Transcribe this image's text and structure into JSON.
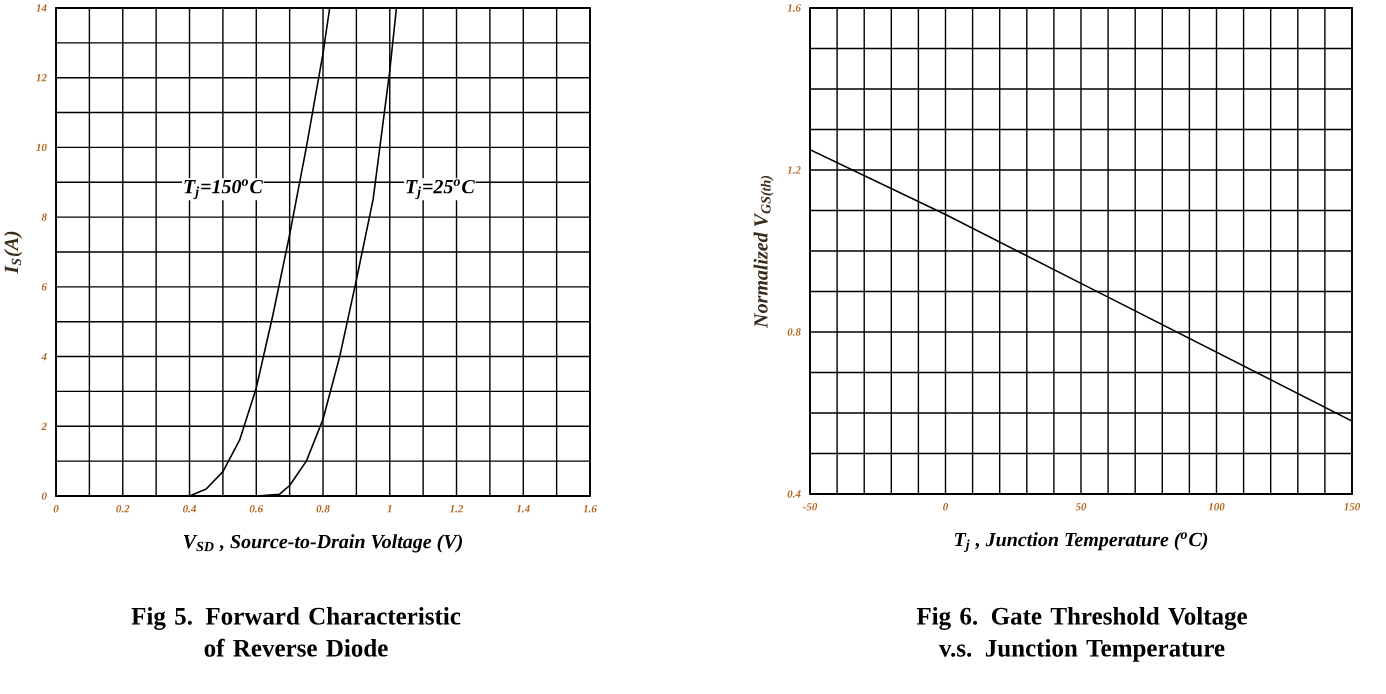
{
  "chart_data": [
    {
      "type": "line",
      "title": "Fig 5. Forward Characteristic of Reverse Diode",
      "xlabel": "V$_{SD}$ , Source-to-Drain Voltage (V)",
      "ylabel": "I$_{S}$(A)",
      "xlim": [
        0,
        1.6
      ],
      "ylim": [
        0,
        14
      ],
      "grid": true,
      "marker": "none",
      "line_style": "solid",
      "xticks": [
        0,
        {
          "value": 0.1,
          "label": null
        },
        0.2,
        {
          "value": 0.3,
          "label": null
        },
        0.4,
        {
          "value": 0.5,
          "label": null
        },
        0.6,
        {
          "value": 0.7,
          "label": null
        },
        0.8,
        {
          "value": 0.9,
          "label": null
        },
        1,
        {
          "value": 1.1,
          "label": null
        },
        1.2,
        {
          "value": 1.3,
          "label": null
        },
        1.4,
        {
          "value": 1.5,
          "label": null
        },
        1.6
      ],
      "yticks": [
        0,
        {
          "value": 1,
          "label": null
        },
        2,
        {
          "value": 3,
          "label": null
        },
        4,
        {
          "value": 5,
          "label": null
        },
        6,
        {
          "value": 7,
          "label": null
        },
        8,
        {
          "value": 9,
          "label": null
        },
        10,
        {
          "value": 11,
          "label": null
        },
        12,
        {
          "value": 13,
          "label": null
        },
        14
      ],
      "series": [
        {
          "color": "#000000",
          "x": [
            0.4,
            0.45,
            0.5,
            0.55,
            0.6,
            0.65,
            0.7,
            0.75,
            0.8,
            0.82
          ],
          "values": [
            0,
            0.2,
            0.7,
            1.6,
            3.1,
            5.2,
            7.5,
            10,
            12.7,
            14
          ]
        },
        {
          "color": "#000000",
          "x": [
            0.6,
            0.67,
            0.7,
            0.75,
            0.8,
            0.85,
            0.9,
            0.95,
            1,
            1.02
          ],
          "values": [
            0,
            0.05,
            0.3,
            1,
            2.2,
            4,
            6.2,
            8.5,
            12.2,
            14
          ]
        }
      ],
      "annotations": [
        "T$_{j}$=150$^{o}$C",
        "T$_{j}$=25$^{o}$C"
      ]
    },
    {
      "type": "line",
      "title": "Fig 6. Gate Threshold Voltage v.s. Junction Temperature",
      "xlabel": "T$_{j}$ , Junction Temperature ($^{o}$C)",
      "ylabel": "Normalized V$_{GS(th)}$",
      "xlim": [
        -50,
        150
      ],
      "ylim": [
        0.4,
        1.6
      ],
      "grid": true,
      "marker": "none",
      "line_style": "solid",
      "xticks": [
        -50,
        {
          "value": -40,
          "label": null
        },
        {
          "value": -30,
          "label": null
        },
        {
          "value": -20,
          "label": null
        },
        {
          "value": -10,
          "label": null
        },
        0,
        {
          "value": 10,
          "label": null
        },
        {
          "value": 20,
          "label": null
        },
        {
          "value": 30,
          "label": null
        },
        {
          "value": 40,
          "label": null
        },
        50,
        {
          "value": 60,
          "label": null
        },
        {
          "value": 70,
          "label": null
        },
        {
          "value": 80,
          "label": null
        },
        {
          "value": 90,
          "label": null
        },
        100,
        {
          "value": 110,
          "label": null
        },
        {
          "value": 120,
          "label": null
        },
        {
          "value": 130,
          "label": null
        },
        {
          "value": 140,
          "label": null
        },
        150
      ],
      "yticks": [
        0.4,
        {
          "value": 0.5,
          "label": null
        },
        {
          "value": 0.6,
          "label": null
        },
        {
          "value": 0.7,
          "label": null
        },
        0.8,
        {
          "value": 0.9,
          "label": null
        },
        {
          "value": 1.0,
          "label": null
        },
        {
          "value": 1.1,
          "label": null
        },
        1.2,
        {
          "value": 1.3,
          "label": null
        },
        {
          "value": 1.4,
          "label": null
        },
        {
          "value": 1.5,
          "label": null
        },
        1.6
      ],
      "series": [
        {
          "color": "#000000",
          "x": [
            -50,
            0,
            50,
            100,
            150
          ],
          "values": [
            1.25,
            1.09,
            0.92,
            0.75,
            0.58
          ]
        }
      ]
    }
  ]
}
